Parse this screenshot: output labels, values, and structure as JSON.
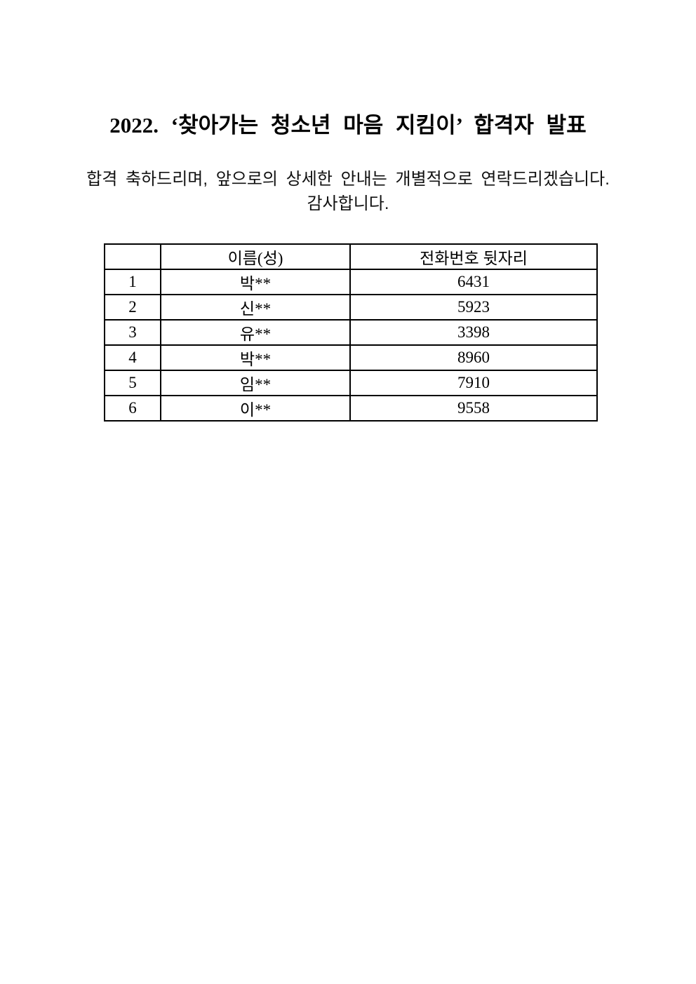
{
  "page": {
    "background": "#ffffff",
    "text_color": "#000000",
    "border_color": "#000000"
  },
  "document": {
    "title": "2022. ‘찾아가는 청소년 마음 지킴이’ 합격자 발표",
    "intro_line1": "합격 축하드리며, 앞으로의 상세한 안내는 개별적으로 연락드리겠습니다.",
    "intro_line2": "감사합니다."
  },
  "table": {
    "headers": {
      "no": "",
      "name": "이름(성)",
      "phone": "전화번호 뒷자리"
    },
    "rows": [
      {
        "no": "1",
        "name": "박**",
        "phone": "6431"
      },
      {
        "no": "2",
        "name": "신**",
        "phone": "5923"
      },
      {
        "no": "3",
        "name": "유**",
        "phone": "3398"
      },
      {
        "no": "4",
        "name": "박**",
        "phone": "8960"
      },
      {
        "no": "5",
        "name": "임**",
        "phone": "7910"
      },
      {
        "no": "6",
        "name": "이**",
        "phone": "9558"
      }
    ]
  }
}
